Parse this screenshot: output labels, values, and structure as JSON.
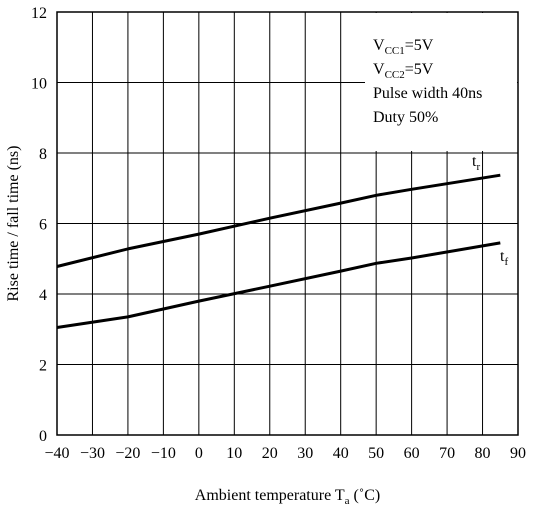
{
  "chart_data": {
    "type": "line",
    "xlabel_main": "Ambient temperature T",
    "xlabel_sub": "a",
    "xlabel_unit": " (˚C)",
    "ylabel": "Rise time / fall time (ns)",
    "xlim": [
      -40,
      90
    ],
    "ylim": [
      0,
      12
    ],
    "xticks": [
      -40,
      -30,
      -20,
      -10,
      0,
      10,
      20,
      30,
      40,
      50,
      60,
      70,
      80,
      90
    ],
    "yticks": [
      0,
      2,
      4,
      6,
      8,
      10,
      12
    ],
    "grid": true,
    "conditions": [
      {
        "main": "V",
        "sub": "CC1",
        "rest": "=5V"
      },
      {
        "main": "V",
        "sub": "CC2",
        "rest": "=5V"
      },
      {
        "main": "Pulse width 40ns",
        "sub": "",
        "rest": ""
      },
      {
        "main": "Duty 50%",
        "sub": "",
        "rest": ""
      }
    ],
    "series": [
      {
        "name": "tr",
        "label_main": "t",
        "label_sub": "r",
        "x": [
          -40,
          -20,
          0,
          20,
          40,
          50,
          60,
          85
        ],
        "y": [
          4.78,
          5.28,
          5.7,
          6.15,
          6.58,
          6.8,
          6.97,
          7.37
        ]
      },
      {
        "name": "tf",
        "label_main": "t",
        "label_sub": "f",
        "x": [
          -40,
          -20,
          0,
          20,
          40,
          50,
          60,
          85
        ],
        "y": [
          3.05,
          3.35,
          3.8,
          4.22,
          4.65,
          4.87,
          5.02,
          5.45
        ]
      }
    ]
  }
}
